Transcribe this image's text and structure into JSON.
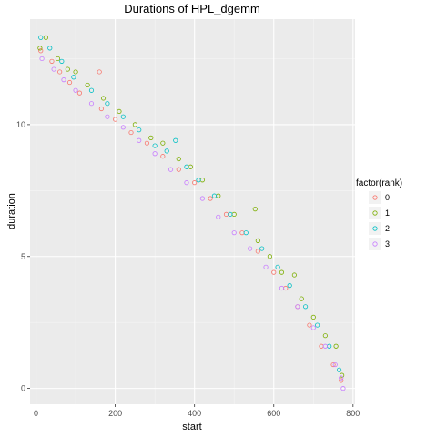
{
  "chart_data": {
    "type": "scatter",
    "title": "Durations of HPL_dgemm",
    "xlabel": "start",
    "ylabel": "duration",
    "xlim": [
      -15,
      805
    ],
    "ylim": [
      -0.6,
      14
    ],
    "x_ticks": [
      0,
      200,
      400,
      600,
      800
    ],
    "y_ticks": [
      0,
      5,
      10
    ],
    "grid": true,
    "legend": {
      "title": "factor(rank)",
      "placement": "right"
    },
    "series": [
      {
        "name": "0",
        "color": "#F8766D",
        "points": [
          [
            12,
            12.8
          ],
          [
            40,
            12.4
          ],
          [
            60,
            12.0
          ],
          [
            85,
            11.6
          ],
          [
            110,
            11.2
          ],
          [
            160,
            12.0
          ],
          [
            165,
            10.6
          ],
          [
            200,
            10.2
          ],
          [
            240,
            9.7
          ],
          [
            280,
            9.3
          ],
          [
            320,
            8.8
          ],
          [
            360,
            8.3
          ],
          [
            400,
            7.8
          ],
          [
            440,
            7.2
          ],
          [
            480,
            6.6
          ],
          [
            520,
            5.9
          ],
          [
            560,
            5.2
          ],
          [
            600,
            4.4
          ],
          [
            630,
            3.8
          ],
          [
            660,
            3.1
          ],
          [
            690,
            2.4
          ],
          [
            720,
            1.6
          ],
          [
            750,
            0.9
          ],
          [
            770,
            0.3
          ]
        ]
      },
      {
        "name": "1",
        "color": "#7CAE00",
        "points": [
          [
            10,
            12.9
          ],
          [
            25,
            13.3
          ],
          [
            55,
            12.5
          ],
          [
            80,
            12.1
          ],
          [
            100,
            12.0
          ],
          [
            130,
            11.5
          ],
          [
            170,
            11.0
          ],
          [
            210,
            10.5
          ],
          [
            250,
            10.0
          ],
          [
            290,
            9.5
          ],
          [
            320,
            9.3
          ],
          [
            360,
            8.7
          ],
          [
            390,
            8.4
          ],
          [
            420,
            7.9
          ],
          [
            460,
            7.3
          ],
          [
            500,
            6.6
          ],
          [
            553,
            6.8
          ],
          [
            560,
            5.6
          ],
          [
            590,
            5.0
          ],
          [
            620,
            4.4
          ],
          [
            652,
            4.3
          ],
          [
            670,
            3.4
          ],
          [
            700,
            2.7
          ],
          [
            730,
            2.0
          ],
          [
            757,
            1.6
          ],
          [
            772,
            0.5
          ]
        ]
      },
      {
        "name": "2",
        "color": "#00BFC4",
        "points": [
          [
            12,
            13.3
          ],
          [
            35,
            12.9
          ],
          [
            65,
            12.4
          ],
          [
            95,
            11.8
          ],
          [
            140,
            11.3
          ],
          [
            180,
            10.8
          ],
          [
            220,
            10.3
          ],
          [
            260,
            9.8
          ],
          [
            300,
            9.2
          ],
          [
            330,
            9.0
          ],
          [
            352,
            9.4
          ],
          [
            380,
            8.4
          ],
          [
            410,
            7.9
          ],
          [
            450,
            7.3
          ],
          [
            490,
            6.6
          ],
          [
            530,
            5.9
          ],
          [
            570,
            5.3
          ],
          [
            610,
            4.6
          ],
          [
            640,
            3.9
          ],
          [
            680,
            3.1
          ],
          [
            710,
            2.4
          ],
          [
            740,
            1.6
          ],
          [
            765,
            0.7
          ]
        ]
      },
      {
        "name": "3",
        "color": "#C77CFF",
        "points": [
          [
            15,
            12.5
          ],
          [
            45,
            12.1
          ],
          [
            70,
            11.7
          ],
          [
            100,
            11.3
          ],
          [
            140,
            10.8
          ],
          [
            180,
            10.3
          ],
          [
            220,
            9.9
          ],
          [
            260,
            9.4
          ],
          [
            300,
            8.9
          ],
          [
            340,
            8.3
          ],
          [
            380,
            7.8
          ],
          [
            420,
            7.2
          ],
          [
            460,
            6.5
          ],
          [
            500,
            5.9
          ],
          [
            540,
            5.3
          ],
          [
            580,
            4.6
          ],
          [
            620,
            3.8
          ],
          [
            660,
            3.1
          ],
          [
            700,
            2.3
          ],
          [
            730,
            1.6
          ],
          [
            755,
            0.9
          ],
          [
            770,
            0.4
          ],
          [
            775,
            0.0
          ]
        ]
      }
    ]
  }
}
